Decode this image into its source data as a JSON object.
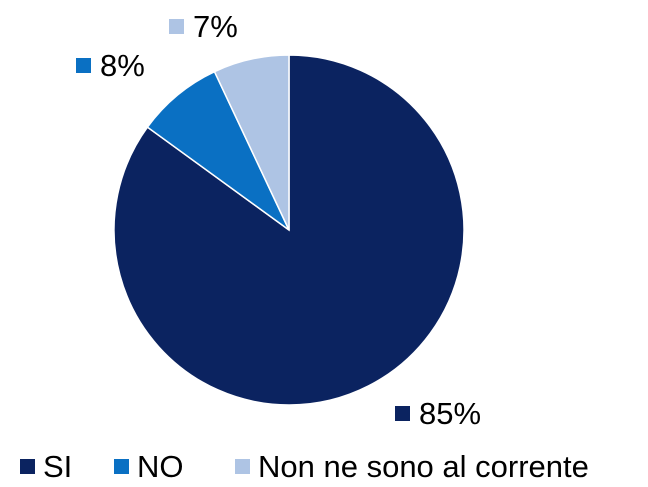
{
  "chart_data": {
    "type": "pie",
    "title": "",
    "slices": [
      {
        "label": "SI",
        "value": 85,
        "value_label": "85%",
        "color": "#0b2360"
      },
      {
        "label": "NO",
        "value": 8,
        "value_label": "8%",
        "color": "#0a70c3"
      },
      {
        "label": "Non ne sono al corrente",
        "value": 7,
        "value_label": "7%",
        "color": "#aec4e4"
      }
    ],
    "legend_position": "bottom",
    "start_angle": "12 o'clock",
    "direction": "clockwise"
  }
}
